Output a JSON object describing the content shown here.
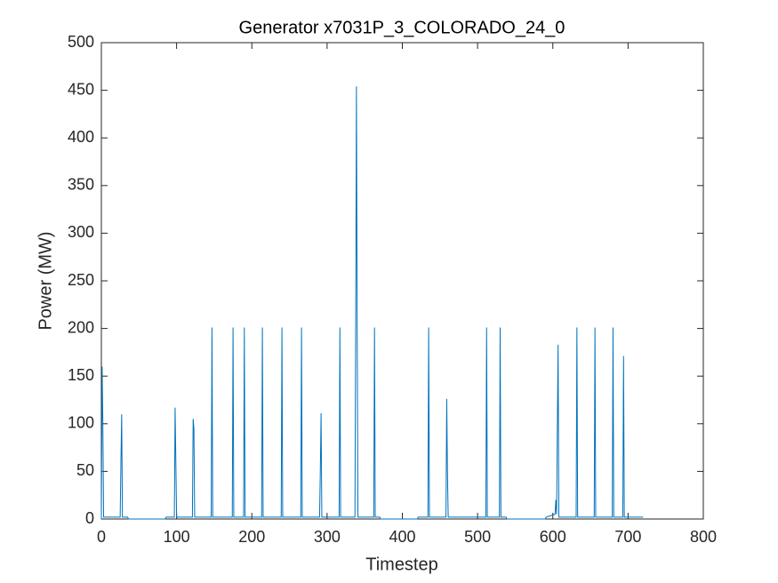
{
  "chart_data": {
    "type": "line",
    "title": "Generator x7031P_3_COLORADO_24_0",
    "xlabel": "Timestep",
    "ylabel": "Power (MW)",
    "x": [
      0,
      1,
      2,
      3,
      25,
      26,
      27,
      28,
      35,
      36,
      85,
      86,
      97,
      98,
      99,
      100,
      121,
      122,
      123,
      124,
      146,
      147,
      148,
      174,
      175,
      176,
      189,
      190,
      191,
      213,
      214,
      215,
      239,
      240,
      241,
      265,
      266,
      267,
      290,
      291,
      292,
      293,
      316,
      317,
      318,
      337,
      338,
      339,
      340,
      341,
      362,
      363,
      364,
      370,
      371,
      420,
      421,
      434,
      435,
      436,
      458,
      459,
      460,
      461,
      511,
      512,
      513,
      529,
      530,
      531,
      538,
      539,
      590,
      591,
      603,
      604,
      605,
      607,
      608,
      631,
      632,
      633,
      655,
      656,
      657,
      679,
      680,
      681,
      693,
      694,
      695,
      720
    ],
    "series": [
      {
        "name": "Power",
        "color": "#0072bd",
        "values": [
          0,
          160,
          100,
          2,
          2,
          60,
          110,
          2,
          2,
          0,
          0,
          2,
          2,
          117,
          60,
          2,
          2,
          105,
          95,
          2,
          2,
          201,
          2,
          2,
          201,
          2,
          2,
          201,
          2,
          2,
          201,
          2,
          2,
          201,
          2,
          2,
          201,
          2,
          2,
          50,
          111,
          2,
          2,
          201,
          2,
          2,
          200,
          454,
          200,
          2,
          2,
          201,
          2,
          2,
          0,
          0,
          2,
          2,
          201,
          2,
          2,
          126,
          47,
          2,
          2,
          201,
          2,
          2,
          201,
          2,
          2,
          0,
          0,
          2,
          5,
          20,
          5,
          183,
          2,
          2,
          201,
          2,
          2,
          201,
          2,
          2,
          201,
          2,
          2,
          171,
          2,
          2
        ]
      }
    ],
    "xlim": [
      0,
      800
    ],
    "xticks": [
      0,
      100,
      200,
      300,
      400,
      500,
      600,
      700,
      800
    ],
    "ylim": [
      0,
      500
    ],
    "yticks": [
      0,
      50,
      100,
      150,
      200,
      250,
      300,
      350,
      400,
      450,
      500
    ],
    "grid": false
  }
}
